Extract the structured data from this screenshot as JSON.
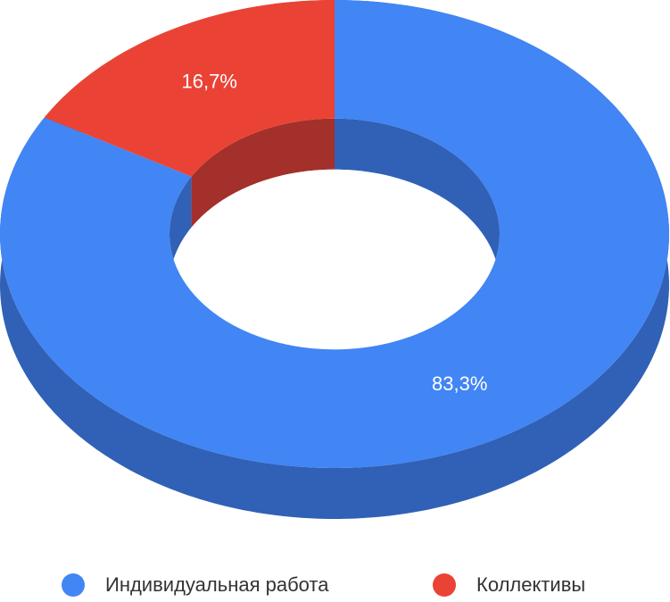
{
  "chart_data": {
    "type": "pie",
    "donut": true,
    "three_d": true,
    "categories": [
      "Индивидуальная работа",
      "Коллективы"
    ],
    "values": [
      83.3,
      16.7
    ],
    "value_labels": [
      "83,3%",
      "16,7%"
    ],
    "colors": [
      "#4285f4",
      "#ea4335"
    ],
    "side_colors": [
      "#3061b6",
      "#a3302a"
    ],
    "legend": "bottom"
  }
}
